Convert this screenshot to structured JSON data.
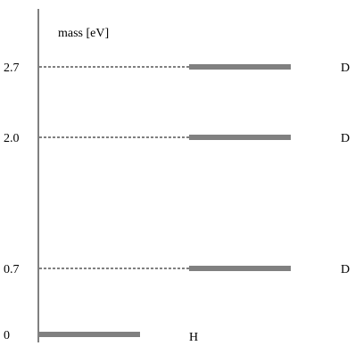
{
  "axis": {
    "title": "mass [eV]",
    "ticks": [
      {
        "label": "2.7",
        "value": 2.7
      },
      {
        "label": "2.0",
        "value": 2.0
      },
      {
        "label": "0.7",
        "value": 0.7
      },
      {
        "label": "0",
        "value": 0
      }
    ]
  },
  "levels": [
    {
      "mass": 2.7,
      "label": "D",
      "dashed_guide": true
    },
    {
      "mass": 2.0,
      "label": "D",
      "dashed_guide": true
    },
    {
      "mass": 0.7,
      "label": "D",
      "dashed_guide": true
    },
    {
      "mass": 0,
      "label": "H",
      "dashed_guide": false
    }
  ],
  "style": {
    "ink": "#000000",
    "background": "#ffffff"
  }
}
